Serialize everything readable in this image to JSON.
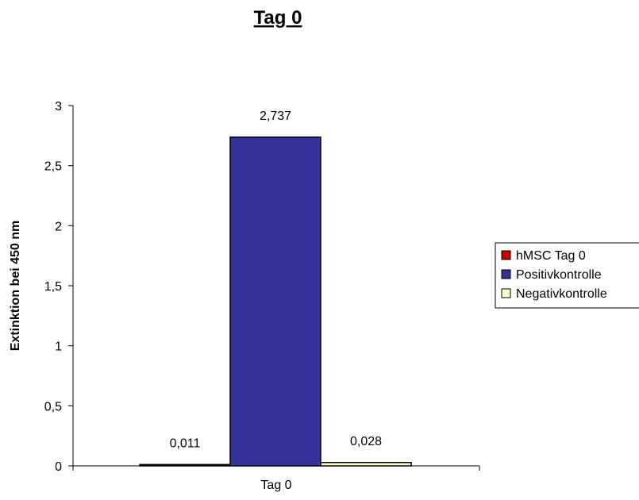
{
  "chart_data": {
    "type": "bar",
    "title": "Tag 0",
    "ylabel": "Extinktion bei 450 nm",
    "xlabel": "",
    "categories": [
      "Tag 0"
    ],
    "series": [
      {
        "name": "hMSC Tag 0",
        "values": [
          0.011
        ],
        "value_labels": [
          "0,011"
        ],
        "color": "#cc0000"
      },
      {
        "name": "Positivkontrolle",
        "values": [
          2.737
        ],
        "value_labels": [
          "2,737"
        ],
        "color": "#333399"
      },
      {
        "name": "Negativkontrolle",
        "values": [
          0.028
        ],
        "value_labels": [
          "0,028"
        ],
        "color": "#ffffcc"
      }
    ],
    "ylim": [
      0,
      3
    ],
    "yticks": [
      0,
      0.5,
      1,
      1.5,
      2,
      2.5,
      3
    ],
    "ytick_labels": [
      "0",
      "0,5",
      "1",
      "1,5",
      "2",
      "2,5",
      "3"
    ],
    "grid": false,
    "legend_position": "right"
  }
}
